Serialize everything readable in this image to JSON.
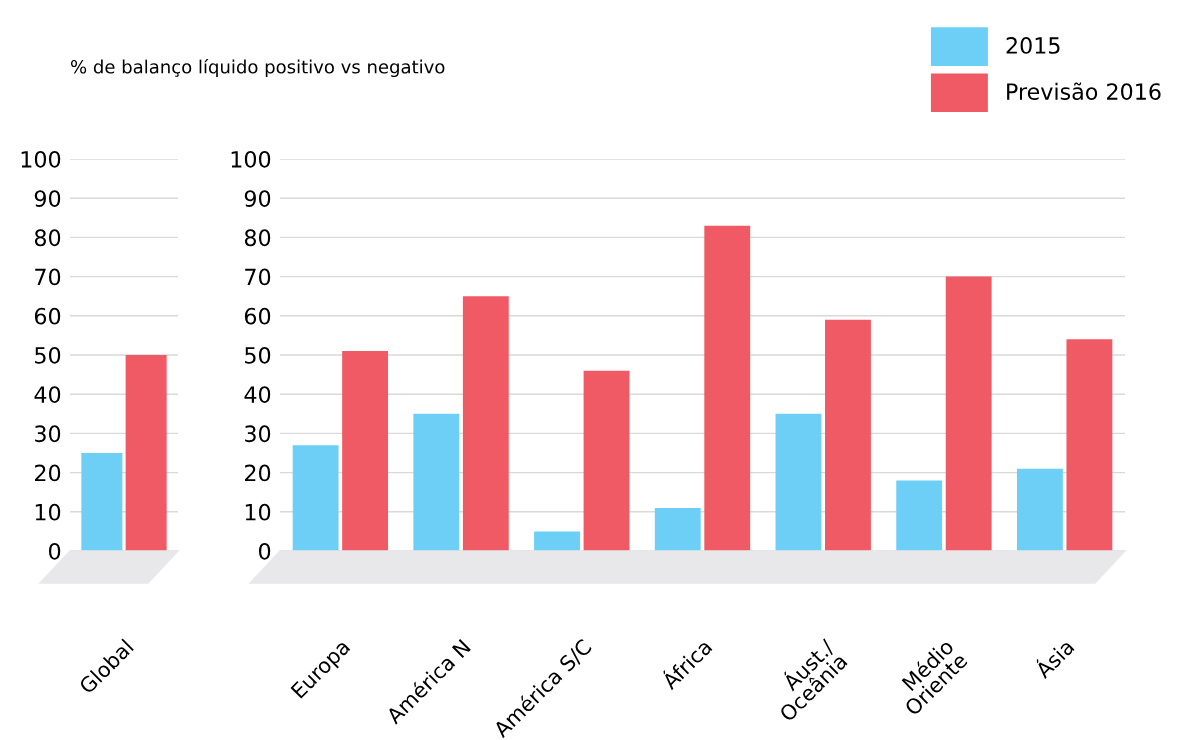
{
  "chart_data": [
    {
      "type": "bar",
      "title": "% de balanço líquido positivo vs negativo",
      "categories": [
        "Global"
      ],
      "series": [
        {
          "color": "#6dcff6",
          "values": [
            25
          ]
        },
        {
          "color": "#f05a64",
          "values": [
            50
          ]
        }
      ],
      "ylim": [
        0,
        100
      ],
      "yticks": [
        0,
        10,
        20,
        30,
        40,
        50,
        60,
        70,
        80,
        90,
        100
      ],
      "grid": "y"
    },
    {
      "type": "bar",
      "categories": [
        "Europa",
        "América N",
        "América S/C",
        "África",
        "Áust./\nOceânia",
        "Médio\nOriente",
        "Ásia"
      ],
      "series": [
        {
          "name": "2015",
          "color": "#6dcff6",
          "values": [
            27,
            35,
            5,
            11,
            35,
            18,
            21
          ]
        },
        {
          "name": "Previsão 2016",
          "color": "#f05a64",
          "values": [
            51,
            65,
            46,
            83,
            59,
            70,
            54
          ]
        }
      ],
      "ylim": [
        0,
        100
      ],
      "yticks": [
        0,
        10,
        20,
        30,
        40,
        50,
        60,
        70,
        80,
        90,
        100
      ],
      "grid": "y",
      "legend": "top right"
    }
  ]
}
